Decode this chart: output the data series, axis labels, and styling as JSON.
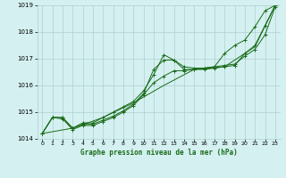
{
  "title": "Graphe pression niveau de la mer (hPa)",
  "background_color": "#d4f0f0",
  "line_color": "#1a6b1a",
  "grid_color": "#b0d0d0",
  "xlim": [
    -0.5,
    23.5
  ],
  "ylim": [
    1014,
    1019
  ],
  "xticks": [
    0,
    1,
    2,
    3,
    4,
    5,
    6,
    7,
    8,
    9,
    10,
    11,
    12,
    13,
    14,
    15,
    16,
    17,
    18,
    19,
    20,
    21,
    22,
    23
  ],
  "yticks": [
    1014,
    1015,
    1016,
    1017,
    1018,
    1019
  ],
  "series": [
    {
      "x": [
        0,
        1,
        2,
        3,
        4,
        5,
        6,
        7,
        8,
        9,
        10,
        11,
        12,
        13,
        14,
        15,
        16,
        17,
        18,
        19,
        20,
        21,
        22,
        23
      ],
      "y": [
        1014.2,
        1014.8,
        1014.8,
        1014.4,
        1014.6,
        1014.6,
        1014.8,
        1015.0,
        1015.2,
        1015.4,
        1015.8,
        1016.4,
        1017.15,
        1016.95,
        1016.7,
        1016.65,
        1016.65,
        1016.7,
        1017.2,
        1017.5,
        1017.7,
        1018.2,
        1018.8,
        1019.0
      ],
      "marker": true
    },
    {
      "x": [
        0,
        1,
        2,
        3,
        4,
        5,
        6,
        7,
        8,
        9,
        10,
        11,
        12,
        13,
        14,
        15,
        16,
        17,
        18,
        19,
        20,
        21,
        22,
        23
      ],
      "y": [
        1014.2,
        1014.8,
        1014.8,
        1014.4,
        1014.55,
        1014.55,
        1014.7,
        1014.85,
        1015.05,
        1015.3,
        1015.7,
        1016.6,
        1016.95,
        1016.95,
        1016.6,
        1016.6,
        1016.6,
        1016.65,
        1016.7,
        1016.75,
        1017.2,
        1017.5,
        1018.25,
        1019.0
      ],
      "marker": true
    },
    {
      "x": [
        0,
        1,
        2,
        3,
        4,
        5,
        6,
        7,
        8,
        9,
        10,
        11,
        12,
        13,
        14,
        15,
        16,
        17,
        18,
        19,
        20,
        21,
        22,
        23
      ],
      "y": [
        1014.2,
        1014.8,
        1014.75,
        1014.35,
        1014.5,
        1014.5,
        1014.65,
        1014.8,
        1015.0,
        1015.25,
        1015.65,
        1016.1,
        1016.35,
        1016.55,
        1016.55,
        1016.6,
        1016.65,
        1016.7,
        1016.75,
        1016.8,
        1017.1,
        1017.35,
        1017.9,
        1018.95
      ],
      "marker": true
    },
    {
      "x": [
        0,
        3,
        6,
        9,
        12,
        15,
        18,
        21,
        23
      ],
      "y": [
        1014.2,
        1014.4,
        1014.8,
        1015.35,
        1016.0,
        1016.6,
        1016.7,
        1017.45,
        1019.0
      ],
      "marker": false
    }
  ]
}
